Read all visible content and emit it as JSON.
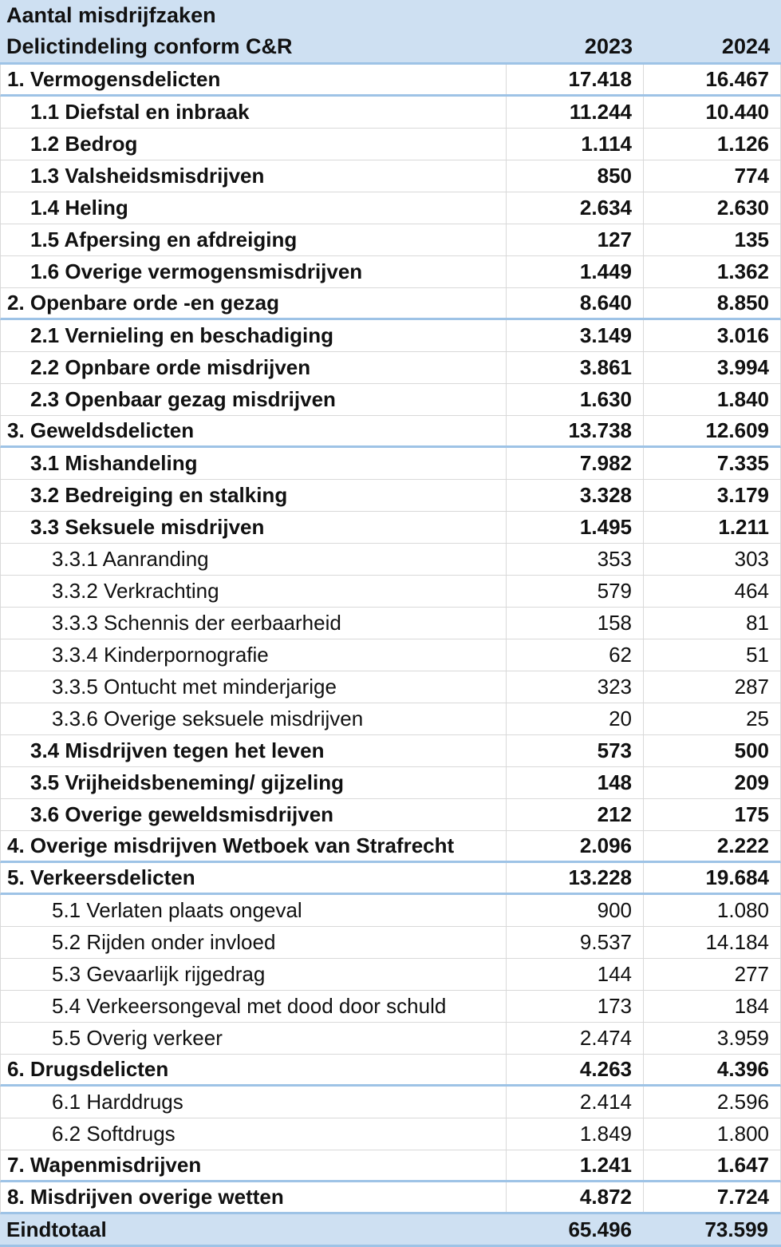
{
  "colors": {
    "header_footer_background": "#cee0f2",
    "section_divider_blue": "#9ec3e6",
    "grid_line_gray": "#d9d9d9",
    "text": "#111111"
  },
  "table": {
    "title": "Aantal misdrijfzaken",
    "header": {
      "label": "Delictindeling conform C&R",
      "year1": "2023",
      "year2": "2024"
    },
    "rows": [
      {
        "label": "1. Vermogensdelicten",
        "v2023": "17.418",
        "v2024": "16.467",
        "level": 1,
        "bold": true,
        "end": true
      },
      {
        "label": "1.1 Diefstal en inbraak",
        "v2023": "11.244",
        "v2024": "10.440",
        "level": 2,
        "bold": true,
        "end": false
      },
      {
        "label": "1.2 Bedrog",
        "v2023": "1.114",
        "v2024": "1.126",
        "level": 2,
        "bold": true,
        "end": false
      },
      {
        "label": "1.3 Valsheidsmisdrijven",
        "v2023": "850",
        "v2024": "774",
        "level": 2,
        "bold": true,
        "end": false
      },
      {
        "label": "1.4 Heling",
        "v2023": "2.634",
        "v2024": "2.630",
        "level": 2,
        "bold": true,
        "end": false
      },
      {
        "label": "1.5 Afpersing en afdreiging",
        "v2023": "127",
        "v2024": "135",
        "level": 2,
        "bold": true,
        "end": false
      },
      {
        "label": "1.6 Overige vermogensmisdrijven",
        "v2023": "1.449",
        "v2024": "1.362",
        "level": 2,
        "bold": true,
        "end": false
      },
      {
        "label": "2. Openbare orde -en gezag",
        "v2023": "8.640",
        "v2024": "8.850",
        "level": 1,
        "bold": true,
        "end": true
      },
      {
        "label": "2.1 Vernieling en beschadiging",
        "v2023": "3.149",
        "v2024": "3.016",
        "level": 2,
        "bold": true,
        "end": false
      },
      {
        "label": "2.2 Opnbare orde misdrijven",
        "v2023": "3.861",
        "v2024": "3.994",
        "level": 2,
        "bold": true,
        "end": false
      },
      {
        "label": "2.3 Openbaar gezag misdrijven",
        "v2023": "1.630",
        "v2024": "1.840",
        "level": 2,
        "bold": true,
        "end": false
      },
      {
        "label": "3. Geweldsdelicten",
        "v2023": "13.738",
        "v2024": "12.609",
        "level": 1,
        "bold": true,
        "end": true
      },
      {
        "label": "3.1 Mishandeling",
        "v2023": "7.982",
        "v2024": "7.335",
        "level": 2,
        "bold": true,
        "end": false
      },
      {
        "label": "3.2 Bedreiging en stalking",
        "v2023": "3.328",
        "v2024": "3.179",
        "level": 2,
        "bold": true,
        "end": false
      },
      {
        "label": "3.3 Seksuele misdrijven",
        "v2023": "1.495",
        "v2024": "1.211",
        "level": 2,
        "bold": true,
        "end": false
      },
      {
        "label": "3.3.1 Aanranding",
        "v2023": "353",
        "v2024": "303",
        "level": 3,
        "bold": false,
        "end": false
      },
      {
        "label": "3.3.2 Verkrachting",
        "v2023": "579",
        "v2024": "464",
        "level": 3,
        "bold": false,
        "end": false
      },
      {
        "label": "3.3.3 Schennis der eerbaarheid",
        "v2023": "158",
        "v2024": "81",
        "level": 3,
        "bold": false,
        "end": false
      },
      {
        "label": "3.3.4 Kinderpornografie",
        "v2023": "62",
        "v2024": "51",
        "level": 3,
        "bold": false,
        "end": false
      },
      {
        "label": "3.3.5 Ontucht met minderjarige",
        "v2023": "323",
        "v2024": "287",
        "level": 3,
        "bold": false,
        "end": false
      },
      {
        "label": "3.3.6 Overige seksuele misdrijven",
        "v2023": "20",
        "v2024": "25",
        "level": 3,
        "bold": false,
        "end": false
      },
      {
        "label": "3.4 Misdrijven tegen het leven",
        "v2023": "573",
        "v2024": "500",
        "level": 2,
        "bold": true,
        "end": false
      },
      {
        "label": "3.5 Vrijheidsbeneming/ gijzeling",
        "v2023": "148",
        "v2024": "209",
        "level": 2,
        "bold": true,
        "end": false
      },
      {
        "label": "3.6 Overige geweldsmisdrijven",
        "v2023": "212",
        "v2024": "175",
        "level": 2,
        "bold": true,
        "end": false
      },
      {
        "label": "4. Overige misdrijven Wetboek van Strafrecht",
        "v2023": "2.096",
        "v2024": "2.222",
        "level": 1,
        "bold": true,
        "end": true
      },
      {
        "label": "5. Verkeersdelicten",
        "v2023": "13.228",
        "v2024": "19.684",
        "level": 1,
        "bold": true,
        "end": true
      },
      {
        "label": "5.1 Verlaten plaats ongeval",
        "v2023": "900",
        "v2024": "1.080",
        "level": 3,
        "bold": false,
        "end": false
      },
      {
        "label": "5.2 Rijden onder invloed",
        "v2023": "9.537",
        "v2024": "14.184",
        "level": 3,
        "bold": false,
        "end": false
      },
      {
        "label": "5.3 Gevaarlijk rijgedrag",
        "v2023": "144",
        "v2024": "277",
        "level": 3,
        "bold": false,
        "end": false
      },
      {
        "label": "5.4 Verkeersongeval met dood door schuld",
        "v2023": "173",
        "v2024": "184",
        "level": 3,
        "bold": false,
        "end": false
      },
      {
        "label": "5.5 Overig verkeer",
        "v2023": "2.474",
        "v2024": "3.959",
        "level": 3,
        "bold": false,
        "end": false
      },
      {
        "label": "6. Drugsdelicten",
        "v2023": "4.263",
        "v2024": "4.396",
        "level": 1,
        "bold": true,
        "end": true
      },
      {
        "label": "6.1 Harddrugs",
        "v2023": "2.414",
        "v2024": "2.596",
        "level": 3,
        "bold": false,
        "end": false
      },
      {
        "label": "6.2 Softdrugs",
        "v2023": "1.849",
        "v2024": "1.800",
        "level": 3,
        "bold": false,
        "end": false
      },
      {
        "label": "7. Wapenmisdrijven",
        "v2023": "1.241",
        "v2024": "1.647",
        "level": 1,
        "bold": true,
        "end": true
      },
      {
        "label": "8. Misdrijven overige wetten",
        "v2023": "4.872",
        "v2024": "7.724",
        "level": 1,
        "bold": true,
        "end": true
      }
    ],
    "footer": {
      "label": "Eindtotaal",
      "v2023": "65.496",
      "v2024": "73.599"
    }
  },
  "chart_data": {
    "type": "table",
    "title": "Aantal misdrijfzaken",
    "columns": [
      "Delictindeling conform C&R",
      "2023",
      "2024"
    ],
    "categories": [
      "1. Vermogensdelicten",
      "1.1 Diefstal en inbraak",
      "1.2 Bedrog",
      "1.3 Valsheidsmisdrijven",
      "1.4 Heling",
      "1.5 Afpersing en afdreiging",
      "1.6 Overige vermogensmisdrijven",
      "2. Openbare orde -en gezag",
      "2.1 Vernieling en beschadiging",
      "2.2 Opnbare orde misdrijven",
      "2.3 Openbaar gezag misdrijven",
      "3. Geweldsdelicten",
      "3.1 Mishandeling",
      "3.2 Bedreiging en stalking",
      "3.3 Seksuele misdrijven",
      "3.3.1 Aanranding",
      "3.3.2 Verkrachting",
      "3.3.3 Schennis der eerbaarheid",
      "3.3.4 Kinderpornografie",
      "3.3.5 Ontucht met minderjarige",
      "3.3.6 Overige seksuele misdrijven",
      "3.4 Misdrijven tegen het leven",
      "3.5 Vrijheidsbeneming/ gijzeling",
      "3.6 Overige geweldsmisdrijven",
      "4. Overige misdrijven Wetboek van Strafrecht",
      "5. Verkeersdelicten",
      "5.1 Verlaten plaats ongeval",
      "5.2 Rijden onder invloed",
      "5.3 Gevaarlijk rijgedrag",
      "5.4 Verkeersongeval met dood door schuld",
      "5.5 Overig verkeer",
      "6. Drugsdelicten",
      "6.1 Harddrugs",
      "6.2 Softdrugs",
      "7. Wapenmisdrijven",
      "8. Misdrijven overige wetten",
      "Eindtotaal"
    ],
    "series": [
      {
        "name": "2023",
        "values": [
          17418,
          11244,
          1114,
          850,
          2634,
          127,
          1449,
          8640,
          3149,
          3861,
          1630,
          13738,
          7982,
          3328,
          1495,
          353,
          579,
          158,
          62,
          323,
          20,
          573,
          148,
          212,
          2096,
          13228,
          900,
          9537,
          144,
          173,
          2474,
          4263,
          2414,
          1849,
          1241,
          4872,
          65496
        ]
      },
      {
        "name": "2024",
        "values": [
          16467,
          10440,
          1126,
          774,
          2630,
          135,
          1362,
          8850,
          3016,
          3994,
          1840,
          12609,
          7335,
          3179,
          1211,
          303,
          464,
          81,
          51,
          287,
          25,
          500,
          209,
          175,
          2222,
          19684,
          1080,
          14184,
          277,
          184,
          3959,
          4396,
          2596,
          1800,
          1647,
          7724,
          73599
        ]
      }
    ]
  }
}
